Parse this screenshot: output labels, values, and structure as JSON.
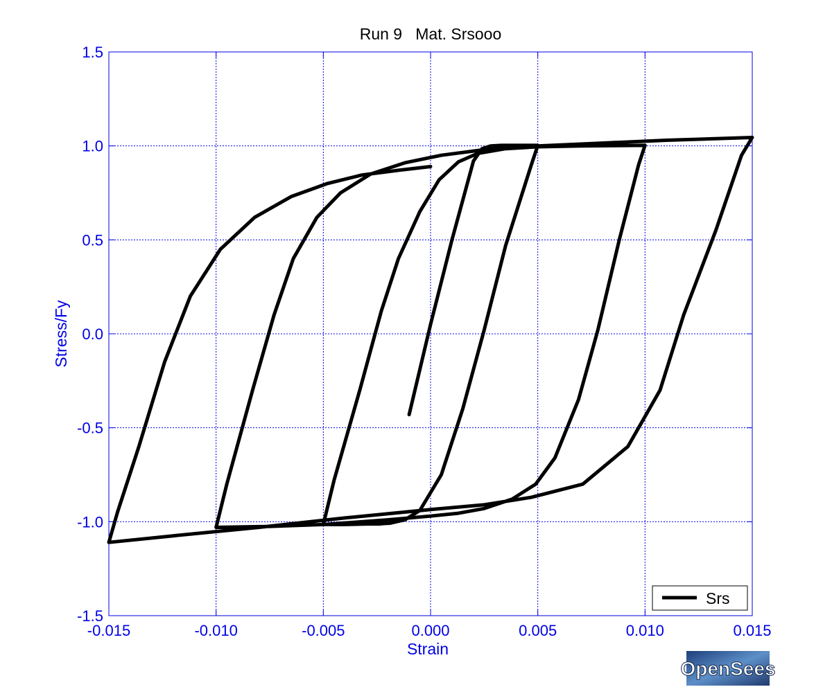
{
  "chart_data": {
    "type": "line",
    "title": "Run 9   Mat. Srsooo",
    "xlabel": "Strain",
    "ylabel": "Stress/Fy",
    "xlim": [
      -0.015,
      0.015
    ],
    "ylim": [
      -1.5,
      1.5
    ],
    "x_ticks": [
      -0.015,
      -0.01,
      -0.005,
      0,
      0.005,
      0.01,
      0.015
    ],
    "x_tick_labels": [
      "-0.015",
      "-0.010",
      "-0.005",
      "0.000",
      "0.005",
      "0.010",
      "0.015"
    ],
    "y_ticks": [
      -1.5,
      -1,
      -0.5,
      0,
      0.5,
      1,
      1.5
    ],
    "y_tick_labels": [
      "-1.5",
      "-1.0",
      "-0.5",
      "0.0",
      "0.5",
      "1.0",
      "1.5"
    ],
    "grid": true,
    "legend_position": "bottom-right",
    "colors": {
      "axis": "#0000e6",
      "grid": "#0000e6",
      "line": "#000000"
    },
    "series": [
      {
        "name": "Srs",
        "x": [
          -0.001,
          0.0,
          0.001,
          0.002,
          0.0024,
          0.0028,
          0.0033,
          0.0042,
          0.005,
          0.0047,
          0.0035,
          0.0025,
          0.0015,
          0.0005,
          -0.0005,
          -0.0012,
          -0.0019,
          -0.0022,
          -0.0024,
          -0.003,
          -0.004,
          -0.005,
          -0.0045,
          -0.0033,
          -0.0023,
          -0.0015,
          -0.0005,
          0.0004,
          0.0013,
          0.0022,
          0.0035,
          0.005,
          0.007,
          0.01,
          0.0097,
          0.0088,
          0.0078,
          0.0069,
          0.0058,
          0.0049,
          0.0038,
          0.0025,
          0.0013,
          0.0,
          -0.002,
          -0.005,
          -0.0075,
          -0.01,
          -0.0095,
          -0.0083,
          -0.0073,
          -0.0064,
          -0.0053,
          -0.0042,
          -0.0028,
          -0.0012,
          0.0005,
          0.0025,
          0.005,
          0.008,
          0.011,
          0.015,
          0.0145,
          0.0133,
          0.0118,
          0.0107,
          0.0092,
          0.0071,
          0.0047,
          0.0025,
          0.0,
          -0.004,
          -0.008,
          -0.012,
          -0.015,
          -0.0146,
          -0.0136,
          -0.0124,
          -0.0112,
          -0.0098,
          -0.0082,
          -0.0065,
          -0.0048,
          -0.0032,
          -0.0015,
          0.0
        ],
        "y": [
          -0.43,
          0.05,
          0.5,
          0.92,
          0.985,
          1.0,
          1.003,
          1.003,
          1.003,
          0.9,
          0.47,
          0.02,
          -0.4,
          -0.75,
          -0.94,
          -0.99,
          -1.008,
          -1.01,
          -1.012,
          -1.012,
          -1.015,
          -1.015,
          -0.78,
          -0.3,
          0.12,
          0.4,
          0.65,
          0.82,
          0.915,
          0.96,
          0.985,
          0.995,
          1.0,
          1.003,
          0.9,
          0.5,
          0.02,
          -0.35,
          -0.66,
          -0.8,
          -0.88,
          -0.93,
          -0.955,
          -0.97,
          -0.99,
          -1.015,
          -1.025,
          -1.03,
          -0.8,
          -0.3,
          0.1,
          0.4,
          0.62,
          0.75,
          0.85,
          0.91,
          0.95,
          0.98,
          1.0,
          1.015,
          1.03,
          1.045,
          0.95,
          0.55,
          0.1,
          -0.3,
          -0.6,
          -0.8,
          -0.87,
          -0.91,
          -0.935,
          -0.98,
          -1.03,
          -1.075,
          -1.11,
          -0.95,
          -0.6,
          -0.15,
          0.2,
          0.45,
          0.62,
          0.73,
          0.8,
          0.845,
          0.87,
          0.89
        ]
      }
    ]
  },
  "logo": {
    "text": "OpenSees"
  }
}
